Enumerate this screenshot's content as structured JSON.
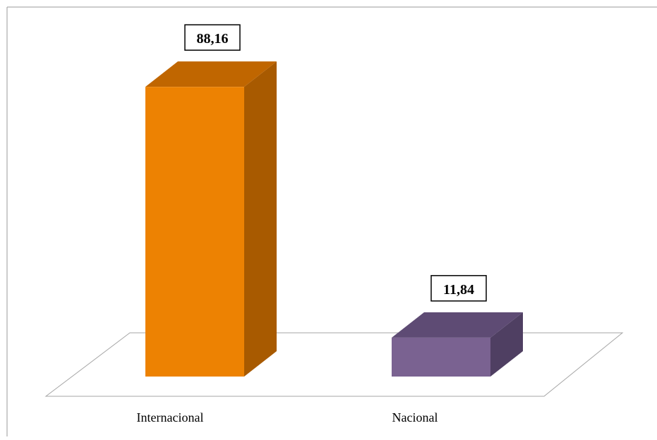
{
  "chart_data": {
    "type": "bar",
    "style": "3d",
    "categories": [
      "Internacional",
      "Nacional"
    ],
    "values": [
      88.16,
      11.84
    ],
    "value_labels": [
      "88,16",
      "11,84"
    ],
    "colors": {
      "Internacional": {
        "front": "#ED8202",
        "side": "#A85A00",
        "top": "#C06600"
      },
      "Nacional": {
        "front": "#7A6291",
        "side": "#4F3F62",
        "top": "#5E4B74"
      }
    },
    "title": "",
    "xlabel": "",
    "ylabel": "",
    "ylim": [
      0,
      100
    ],
    "grid": false,
    "legend": "none"
  }
}
